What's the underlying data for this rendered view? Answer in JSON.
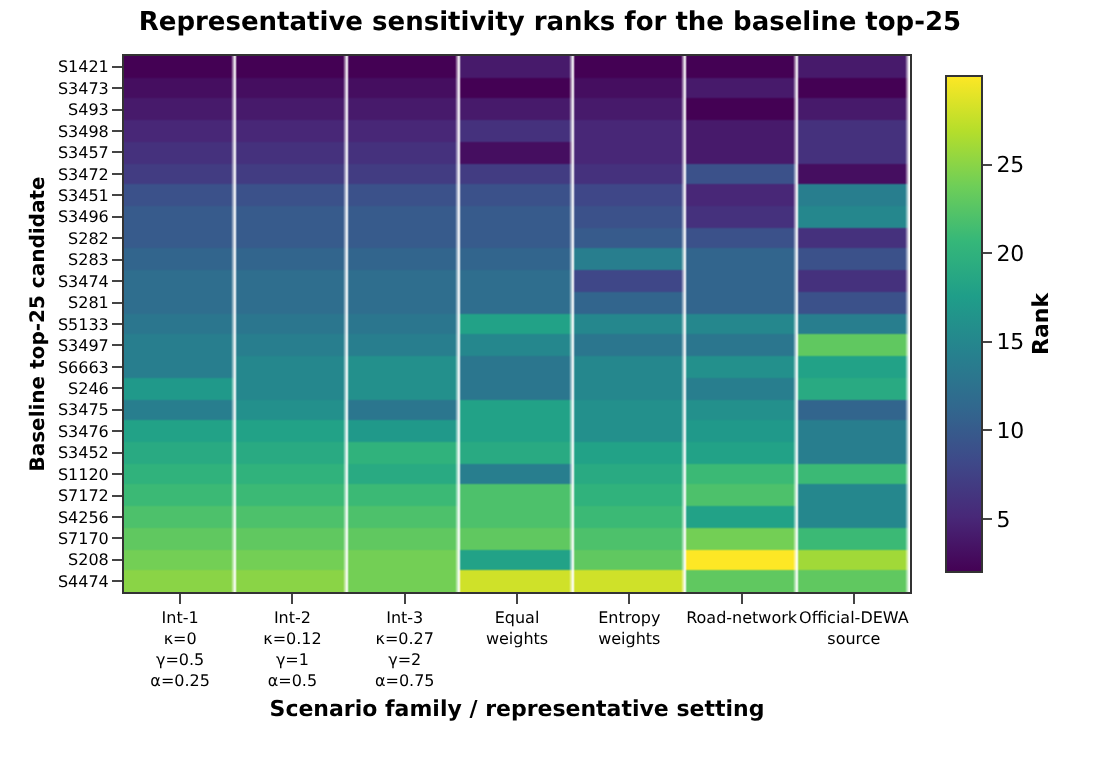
{
  "chart_data": {
    "type": "heatmap",
    "title": "Representative sensitivity ranks for the baseline top-25",
    "xlabel": "Scenario family / representative setting",
    "ylabel": "Baseline top-25 candidate",
    "clabel": "Rank",
    "categories": [
      "Int-1\nκ=0\nγ=0.5\nα=0.25",
      "Int-2\nκ=0.12\nγ=1\nα=0.5",
      "Int-3\nκ=0.27\nγ=2\nα=0.75",
      "Equal\nweights",
      "Entropy\nweights",
      "Road-network",
      "Official-DEWA\nsource"
    ],
    "y_categories": [
      "S1421",
      "S3473",
      "S493",
      "S3498",
      "S3457",
      "S3472",
      "S3451",
      "S3496",
      "S282",
      "S283",
      "S3474",
      "S281",
      "S5133",
      "S3497",
      "S6663",
      "S246",
      "S3475",
      "S3476",
      "S3452",
      "S1120",
      "S7172",
      "S4256",
      "S7170",
      "S208",
      "S4474"
    ],
    "cells": [
      [
        2,
        2,
        2,
        4,
        2,
        2,
        4
      ],
      [
        3,
        3,
        3,
        2,
        3,
        4,
        2
      ],
      [
        4,
        4,
        4,
        4,
        4,
        2,
        4
      ],
      [
        5,
        5,
        5,
        6,
        5,
        4,
        6
      ],
      [
        6,
        6,
        6,
        3,
        5,
        4,
        6
      ],
      [
        7,
        7,
        7,
        7,
        6,
        9,
        3
      ],
      [
        9,
        9,
        9,
        9,
        8,
        5,
        14
      ],
      [
        10,
        10,
        10,
        10,
        9,
        6,
        15
      ],
      [
        10,
        10,
        10,
        10,
        10,
        9,
        6
      ],
      [
        11,
        11,
        11,
        11,
        14,
        11,
        9
      ],
      [
        12,
        12,
        12,
        12,
        8,
        11,
        6
      ],
      [
        12,
        12,
        12,
        12,
        11,
        11,
        9
      ],
      [
        13,
        13,
        13,
        18,
        15,
        15,
        14
      ],
      [
        14,
        14,
        14,
        15,
        13,
        13,
        23
      ],
      [
        14,
        15,
        16,
        13,
        15,
        16,
        18
      ],
      [
        17,
        15,
        16,
        13,
        15,
        14,
        19
      ],
      [
        14,
        16,
        13,
        18,
        16,
        16,
        11
      ],
      [
        18,
        18,
        17,
        18,
        16,
        17,
        14
      ],
      [
        19,
        19,
        20,
        19,
        18,
        18,
        14
      ],
      [
        20,
        20,
        19,
        14,
        19,
        21,
        21
      ],
      [
        21,
        21,
        21,
        22,
        20,
        22,
        15
      ],
      [
        22,
        22,
        22,
        22,
        21,
        18,
        15
      ],
      [
        23,
        23,
        23,
        23,
        22,
        24,
        21
      ],
      [
        24,
        24,
        24,
        18,
        23,
        30,
        26
      ],
      [
        25,
        25,
        24,
        28,
        28,
        23,
        23
      ]
    ],
    "clim": [
      2,
      30
    ],
    "cticks": [
      5,
      10,
      15,
      20,
      25
    ]
  }
}
